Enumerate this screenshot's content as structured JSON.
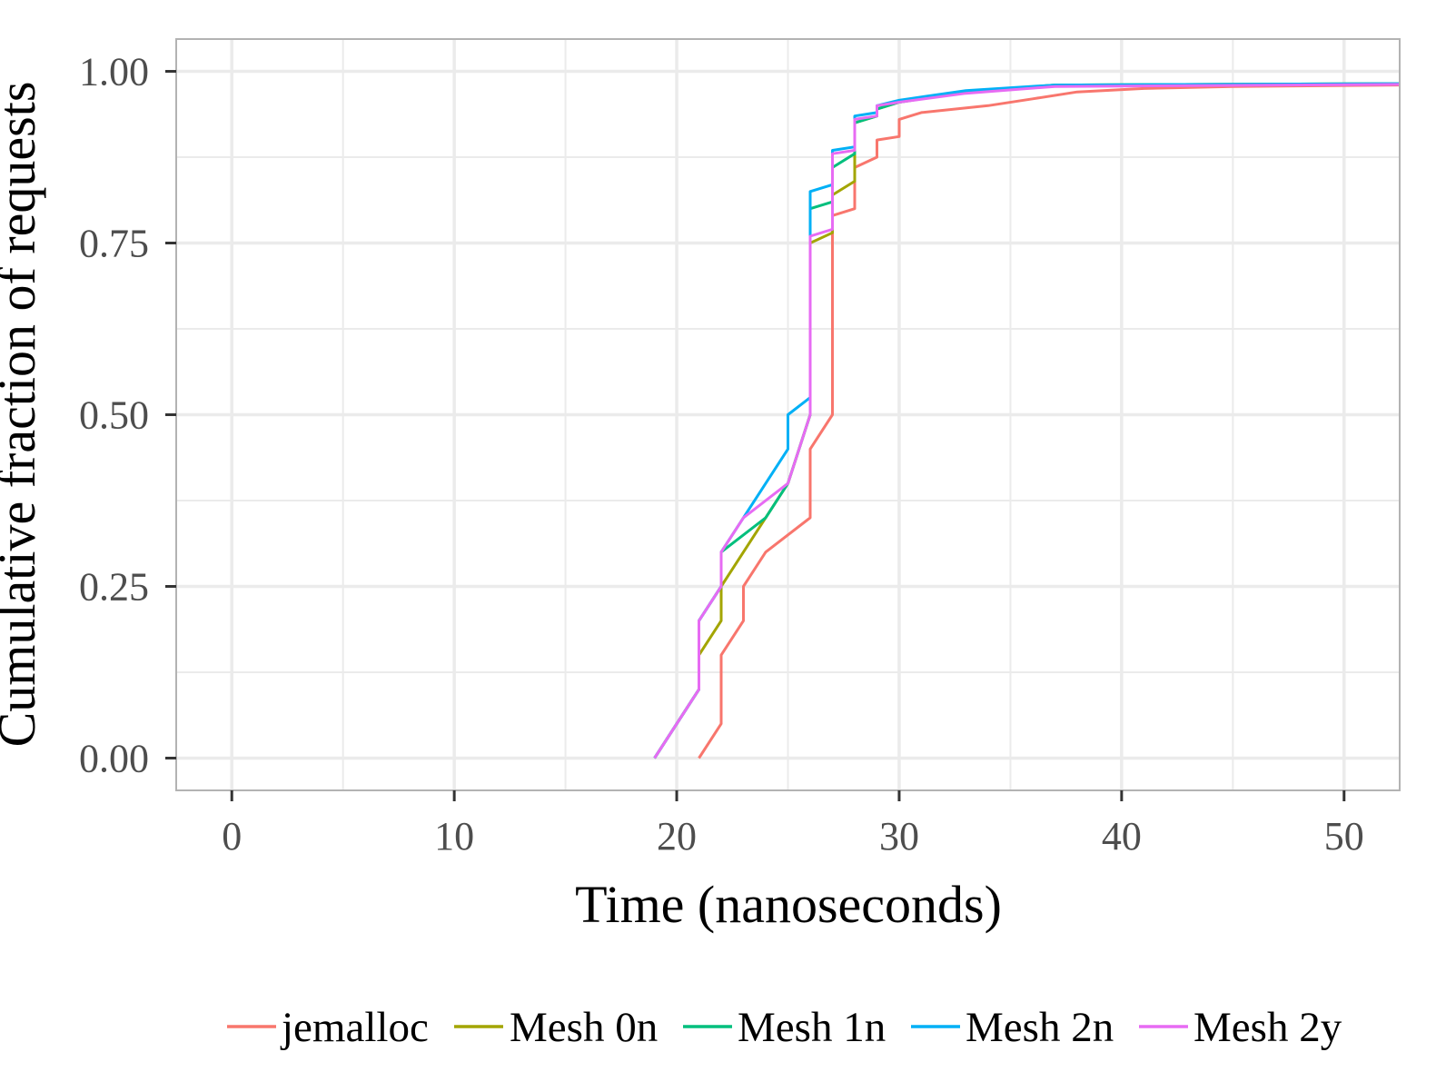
{
  "chart_data": {
    "type": "line",
    "title": "",
    "xlabel": "Time (nanoseconds)",
    "ylabel": "Cumulative fraction of requests",
    "xlim": [
      -2.5,
      52.5
    ],
    "ylim": [
      -0.047,
      1.047
    ],
    "x_ticks": [
      0,
      10,
      20,
      30,
      40,
      50
    ],
    "x_tick_labels": [
      "0",
      "10",
      "20",
      "30",
      "40",
      "50"
    ],
    "y_ticks": [
      0,
      0.25,
      0.5,
      0.75,
      1
    ],
    "y_tick_labels": [
      "0.00",
      "0.25",
      "0.50",
      "0.75",
      "1.00"
    ],
    "grid": true,
    "legend_position": "bottom",
    "series": [
      {
        "name": "jemalloc",
        "color": "#F8766D",
        "points": [
          [
            21,
            0
          ],
          [
            22,
            0.05
          ],
          [
            22,
            0.15
          ],
          [
            23,
            0.2
          ],
          [
            23,
            0.25
          ],
          [
            24,
            0.3
          ],
          [
            26,
            0.35
          ],
          [
            26,
            0.45
          ],
          [
            27,
            0.5
          ],
          [
            27,
            0.79
          ],
          [
            28,
            0.8
          ],
          [
            28,
            0.86
          ],
          [
            29,
            0.875
          ],
          [
            29,
            0.9
          ],
          [
            30,
            0.905
          ],
          [
            30,
            0.93
          ],
          [
            31,
            0.94
          ],
          [
            34,
            0.95
          ],
          [
            36,
            0.96
          ],
          [
            38,
            0.97
          ],
          [
            41,
            0.975
          ],
          [
            45,
            0.978
          ],
          [
            52.5,
            0.98
          ]
        ]
      },
      {
        "name": "Mesh 0n",
        "color": "#A3A500",
        "points": [
          [
            19,
            0
          ],
          [
            21,
            0.1
          ],
          [
            21,
            0.15
          ],
          [
            22,
            0.2
          ],
          [
            22,
            0.25
          ],
          [
            25,
            0.4
          ],
          [
            26,
            0.5
          ],
          [
            26,
            0.75
          ],
          [
            27,
            0.765
          ],
          [
            27,
            0.82
          ],
          [
            28,
            0.84
          ],
          [
            28,
            0.925
          ],
          [
            29,
            0.935
          ],
          [
            29,
            0.945
          ],
          [
            30,
            0.955
          ],
          [
            33,
            0.97
          ],
          [
            37,
            0.98
          ],
          [
            52.5,
            0.982
          ]
        ]
      },
      {
        "name": "Mesh 1n",
        "color": "#00BF7D",
        "points": [
          [
            19,
            0
          ],
          [
            21,
            0.1
          ],
          [
            21,
            0.2
          ],
          [
            22,
            0.25
          ],
          [
            22,
            0.3
          ],
          [
            24,
            0.35
          ],
          [
            25,
            0.4
          ],
          [
            26,
            0.5
          ],
          [
            26,
            0.8
          ],
          [
            27,
            0.81
          ],
          [
            27,
            0.86
          ],
          [
            28,
            0.88
          ],
          [
            28,
            0.925
          ],
          [
            29,
            0.935
          ],
          [
            29,
            0.945
          ],
          [
            30,
            0.955
          ],
          [
            33,
            0.97
          ],
          [
            37,
            0.98
          ],
          [
            52.5,
            0.982
          ]
        ]
      },
      {
        "name": "Mesh 2n",
        "color": "#00B0F6",
        "points": [
          [
            19,
            0
          ],
          [
            21,
            0.1
          ],
          [
            21,
            0.2
          ],
          [
            22,
            0.25
          ],
          [
            22,
            0.3
          ],
          [
            25,
            0.45
          ],
          [
            25,
            0.5
          ],
          [
            26,
            0.525
          ],
          [
            26,
            0.825
          ],
          [
            27,
            0.835
          ],
          [
            27,
            0.885
          ],
          [
            28,
            0.89
          ],
          [
            28,
            0.935
          ],
          [
            29,
            0.94
          ],
          [
            29,
            0.95
          ],
          [
            30,
            0.958
          ],
          [
            33,
            0.972
          ],
          [
            37,
            0.98
          ],
          [
            52.5,
            0.982
          ]
        ]
      },
      {
        "name": "Mesh 2y",
        "color": "#E76BF3",
        "points": [
          [
            19,
            0
          ],
          [
            21,
            0.1
          ],
          [
            21,
            0.2
          ],
          [
            22,
            0.25
          ],
          [
            22,
            0.3
          ],
          [
            23,
            0.35
          ],
          [
            25,
            0.4
          ],
          [
            26,
            0.5
          ],
          [
            26,
            0.76
          ],
          [
            27,
            0.77
          ],
          [
            27,
            0.88
          ],
          [
            28,
            0.885
          ],
          [
            28,
            0.93
          ],
          [
            29,
            0.935
          ],
          [
            29,
            0.95
          ],
          [
            30,
            0.955
          ],
          [
            33,
            0.968
          ],
          [
            37,
            0.978
          ],
          [
            52.5,
            0.981
          ]
        ]
      }
    ]
  }
}
